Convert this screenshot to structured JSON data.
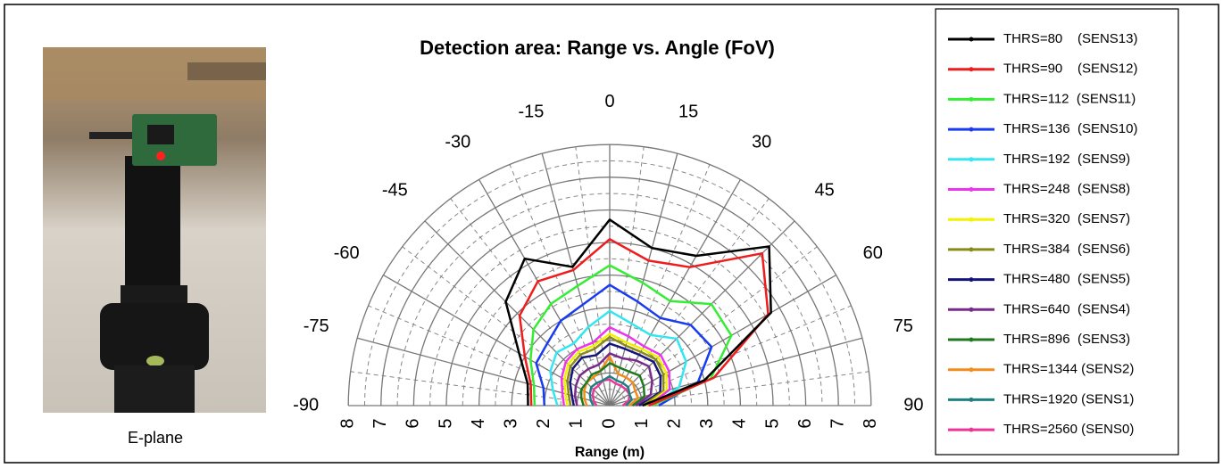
{
  "chart_data": {
    "type": "polar",
    "title": "Detection area: Range vs. Angle (FoV)",
    "xlabel": "Range (m)",
    "caption": "E-plane",
    "angles": [
      -90,
      -75,
      -60,
      -45,
      -30,
      -15,
      0,
      15,
      30,
      45,
      60,
      75,
      90
    ],
    "rlim": [
      0,
      8
    ],
    "rticks": [
      0,
      1,
      2,
      3,
      4,
      5,
      6,
      7,
      8
    ],
    "grid": true,
    "legend": "right",
    "series": [
      {
        "name": "THRS=80    (SENS13)",
        "color": "#000000",
        "values": [
          2.5,
          2.6,
          3.2,
          4.5,
          5.2,
          4.4,
          5.7,
          5.0,
          5.3,
          6.9,
          5.7,
          3.0,
          1.0
        ]
      },
      {
        "name": "THRS=90    (SENS12)",
        "color": "#ee1c1c",
        "values": [
          2.4,
          2.5,
          3.0,
          3.9,
          4.4,
          4.3,
          5.1,
          4.6,
          4.9,
          6.6,
          5.6,
          3.3,
          1.2
        ]
      },
      {
        "name": "THRS=112  (SENS11)",
        "color": "#33ee33",
        "values": [
          2.3,
          2.4,
          2.8,
          3.3,
          3.6,
          3.8,
          4.3,
          3.9,
          3.7,
          4.4,
          4.3,
          3.2,
          1.3
        ]
      },
      {
        "name": "THRS=136  (SENS10)",
        "color": "#1a3cf0",
        "values": [
          2.0,
          2.1,
          2.6,
          2.7,
          3.0,
          3.2,
          3.7,
          3.3,
          3.1,
          3.5,
          3.6,
          2.8,
          1.5
        ]
      },
      {
        "name": "THRS=192  (SENS9)",
        "color": "#33e6f0",
        "values": [
          1.6,
          1.8,
          2.1,
          2.3,
          2.2,
          2.5,
          2.9,
          2.6,
          2.5,
          2.9,
          2.7,
          2.2,
          1.3
        ]
      },
      {
        "name": "THRS=248  (SENS8)",
        "color": "#ee33ee",
        "values": [
          1.4,
          1.5,
          1.7,
          1.9,
          2.0,
          2.0,
          2.4,
          2.2,
          2.1,
          2.2,
          2.1,
          1.9,
          1.2
        ]
      },
      {
        "name": "THRS=320  (SENS7)",
        "color": "#f2f200",
        "values": [
          1.3,
          1.4,
          1.6,
          1.8,
          1.9,
          1.9,
          2.2,
          2.0,
          2.0,
          2.1,
          2.0,
          1.8,
          1.1
        ]
      },
      {
        "name": "THRS=384  (SENS6)",
        "color": "#8a8a1a",
        "values": [
          1.2,
          1.3,
          1.5,
          1.7,
          1.8,
          1.8,
          2.1,
          1.9,
          1.9,
          2.0,
          1.9,
          1.7,
          1.0
        ]
      },
      {
        "name": "THRS=480  (SENS5)",
        "color": "#14147a",
        "values": [
          1.1,
          1.2,
          1.4,
          1.6,
          1.7,
          1.6,
          1.9,
          1.8,
          1.8,
          1.9,
          1.8,
          1.6,
          0.9
        ]
      },
      {
        "name": "THRS=640  (SENS4)",
        "color": "#7a2a8a",
        "values": [
          1.0,
          1.1,
          1.2,
          1.3,
          1.3,
          1.3,
          1.6,
          1.5,
          1.6,
          1.7,
          1.5,
          1.3,
          0.8
        ]
      },
      {
        "name": "THRS=896  (SENS3)",
        "color": "#1f7a1f",
        "values": [
          0.8,
          0.9,
          1.0,
          1.0,
          1.1,
          1.1,
          1.3,
          1.2,
          1.2,
          1.3,
          1.2,
          1.1,
          0.7
        ]
      },
      {
        "name": "THRS=1344 (SENS2)",
        "color": "#f28c1a",
        "values": [
          0.7,
          0.8,
          0.9,
          1.0,
          1.0,
          1.1,
          1.5,
          1.0,
          1.0,
          1.0,
          0.9,
          0.9,
          0.6
        ]
      },
      {
        "name": "THRS=1920 (SENS1)",
        "color": "#1f8080",
        "values": [
          0.5,
          0.6,
          0.7,
          0.8,
          0.8,
          0.8,
          0.9,
          0.8,
          0.8,
          0.8,
          0.7,
          0.7,
          0.5
        ]
      },
      {
        "name": "THRS=2560 (SENS0)",
        "color": "#ee3399",
        "values": [
          0.4,
          0.5,
          0.6,
          0.7,
          0.7,
          0.8,
          0.8,
          0.7,
          0.7,
          0.7,
          0.7,
          0.6,
          0.4
        ]
      }
    ]
  }
}
